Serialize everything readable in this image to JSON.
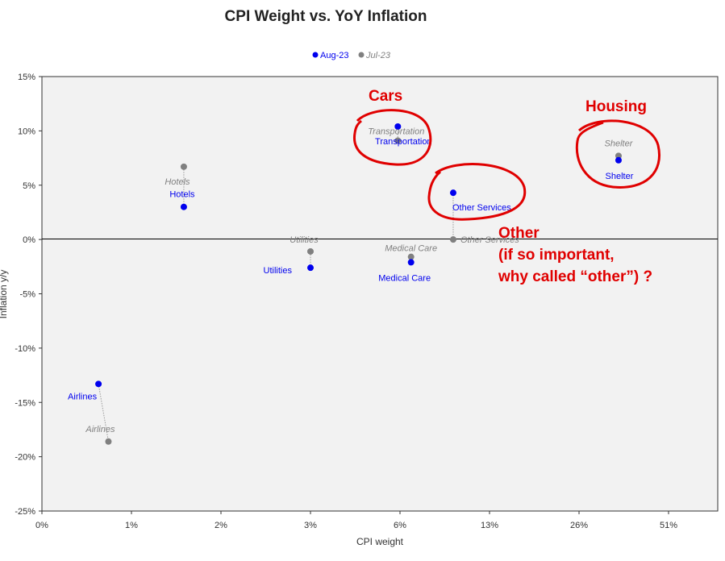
{
  "chart_data": {
    "type": "scatter",
    "title": "CPI Weight vs. YoY Inflation",
    "xlabel": "CPI weight",
    "ylabel": "Inflation y/y",
    "x_scale": "log",
    "x_tick_labels": [
      "0%",
      "1%",
      "2%",
      "3%",
      "6%",
      "13%",
      "26%",
      "51%"
    ],
    "y_tick_labels": [
      "15%",
      "10%",
      "5%",
      "0%",
      "-5%",
      "-10%",
      "-15%",
      "-20%",
      "-25%"
    ],
    "ylim": [
      -25,
      15
    ],
    "legend_position": "top-center",
    "grid": false,
    "series": [
      {
        "name": "Aug-23",
        "color": "#0000ee",
        "points": [
          {
            "label": "Airlines",
            "x": 0.6,
            "y": -13.3
          },
          {
            "label": "Hotels",
            "x": 1.5,
            "y": 3.0
          },
          {
            "label": "Utilities",
            "x": 3.0,
            "y": -2.6
          },
          {
            "label": "Medical Care",
            "x": 6.6,
            "y": -2.1
          },
          {
            "label": "Transportation",
            "x": 5.9,
            "y": 10.4
          },
          {
            "label": "Other Services",
            "x": 9.5,
            "y": 4.3
          },
          {
            "label": "Shelter",
            "x": 35.0,
            "y": 7.3
          }
        ]
      },
      {
        "name": "Jul-23",
        "color": "#808080",
        "points": [
          {
            "label": "Airlines",
            "x": 0.7,
            "y": -18.6
          },
          {
            "label": "Hotels",
            "x": 1.5,
            "y": 6.7
          },
          {
            "label": "Utilities",
            "x": 3.0,
            "y": -1.1
          },
          {
            "label": "Medical Care",
            "x": 6.6,
            "y": -1.6
          },
          {
            "label": "Transportation",
            "x": 5.9,
            "y": 9.1
          },
          {
            "label": "Other Services",
            "x": 9.5,
            "y": 0.0
          },
          {
            "label": "Shelter",
            "x": 35.0,
            "y": 7.7
          }
        ]
      }
    ]
  },
  "annotations": [
    {
      "id": "cars",
      "lines": [
        "Cars"
      ]
    },
    {
      "id": "housing",
      "lines": [
        "Housing"
      ]
    },
    {
      "id": "other",
      "lines": [
        "Other",
        "(if so important,",
        "why called “other”) ?"
      ]
    }
  ]
}
